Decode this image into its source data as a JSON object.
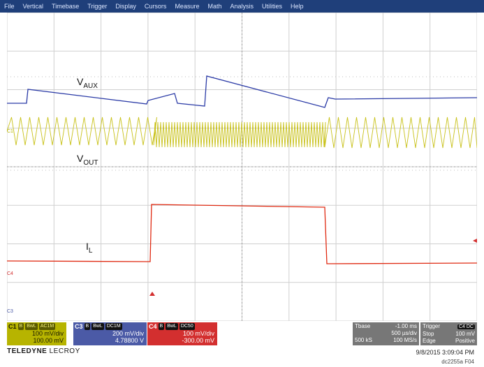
{
  "menu": [
    "File",
    "Vertical",
    "Timebase",
    "Trigger",
    "Display",
    "Cursors",
    "Measure",
    "Math",
    "Analysis",
    "Utilities",
    "Help"
  ],
  "traces": {
    "vaux_label": "V",
    "vaux_sub": "AUX",
    "vout_label": "V",
    "vout_sub": "OUT",
    "il_label": "I",
    "il_sub": "L",
    "colors": {
      "vaux": "#2a3aa6",
      "vout": "#c9c21c",
      "il": "#e02a12"
    }
  },
  "markers": {
    "c1": "C1",
    "c4": "C4",
    "c3": "C3"
  },
  "channels": {
    "c1": {
      "name": "C1",
      "chip1": "B",
      "chip2": "BwL",
      "chip3": "AC1M",
      "vdiv": "100 mV/div",
      "offset": "100.00 mV"
    },
    "c3": {
      "name": "C3",
      "chip1": "B",
      "chip2": "BwL",
      "chip3": "DC1M",
      "vdiv": "200 mV/div",
      "offset": "4.78800 V"
    },
    "c4": {
      "name": "C4",
      "chip1": "B",
      "chip2": "BwL",
      "chip3": "DC50",
      "vdiv": "100 mV/div",
      "offset": "-300.00 mV"
    }
  },
  "timebase": {
    "label": "Tbase",
    "delay": "-1.00 ms",
    "tdiv": "500 µs/div",
    "samples": "500 kS",
    "rate": "100 MS/s"
  },
  "trigger": {
    "label": "Trigger",
    "chip": "C4 DC",
    "mode": "Stop",
    "level": "100 mV",
    "type": "Edge",
    "slope": "Positive"
  },
  "brand": {
    "bold": "TELEDYNE",
    "light": "LECROY"
  },
  "timestamp": "9/8/2015 3:09:04 PM",
  "figure_id": "dc2255a F04"
}
